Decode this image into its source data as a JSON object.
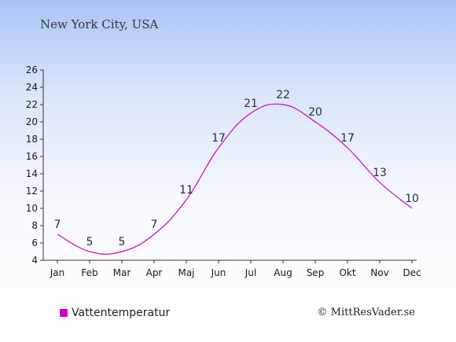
{
  "chart_data": {
    "type": "line",
    "title": "New York City, USA",
    "categories": [
      "Jan",
      "Feb",
      "Mar",
      "Apr",
      "Maj",
      "Jun",
      "Jul",
      "Aug",
      "Sep",
      "Okt",
      "Nov",
      "Dec"
    ],
    "series": [
      {
        "name": "Vattentemperatur",
        "values": [
          7,
          5,
          5,
          7,
          11,
          17,
          21,
          22,
          20,
          17,
          13,
          10
        ],
        "color": "#cc00cc"
      }
    ],
    "ylim": [
      4,
      26
    ],
    "yticks": [
      "4",
      "6",
      "8",
      "10",
      "12",
      "14",
      "16",
      "18",
      "20",
      "22",
      "24",
      "26"
    ],
    "grid": false,
    "legend_position": "bottom-left"
  },
  "credit": "© MittResVader.se"
}
